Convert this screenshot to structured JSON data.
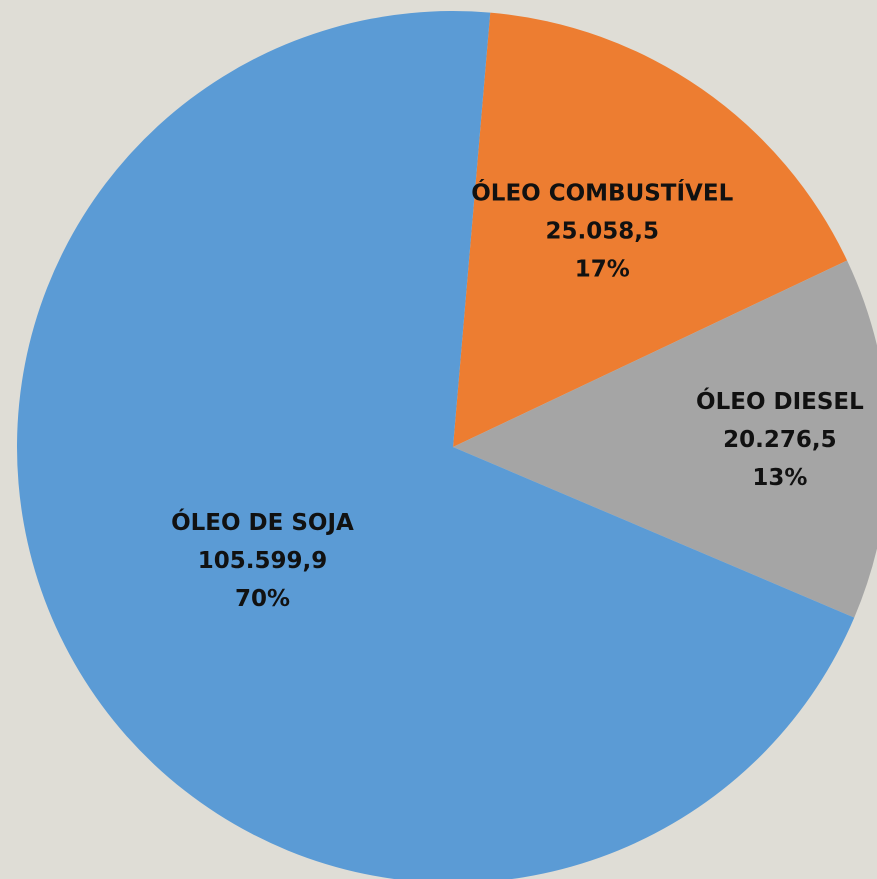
{
  "chart_data": {
    "type": "pie",
    "categories": [
      "ÓLEO COMBUSTÍVEL",
      "ÓLEO DIESEL",
      "ÓLEO DE SOJA"
    ],
    "values": [
      25058.5,
      20276.5,
      105599.9
    ],
    "value_labels": [
      "25.058,5",
      "20.276,5",
      "105.599,9"
    ],
    "percent_labels": [
      "17%",
      "13%",
      "70%"
    ],
    "colors": [
      "#ed7d31",
      "#a5a5a5",
      "#5b9bd5"
    ]
  }
}
